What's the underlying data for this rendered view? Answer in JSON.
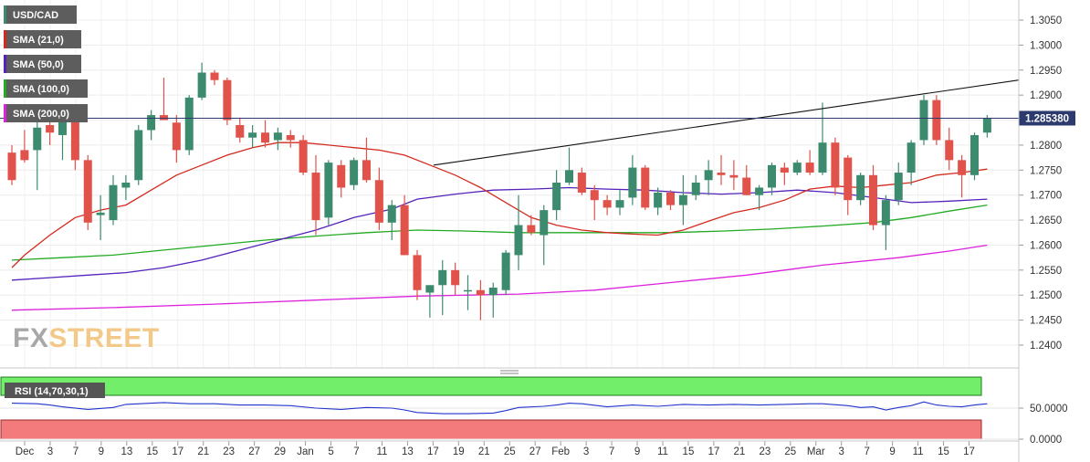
{
  "chart_data": {
    "type": "candlestick",
    "symbol": "USD/CAD",
    "last_price_label": "1.285380",
    "last_price": 1.28538,
    "colors": {
      "up": "#3d8b6e",
      "down": "#e0524a",
      "sma21": "#d42a1e",
      "sma50": "#5522bb",
      "sma100": "#22aa22",
      "sma200": "#dd22dd",
      "trendline": "#111111",
      "lastline": "#2c3a6e"
    },
    "y_axis": {
      "min": 1.235,
      "max": 1.308,
      "ticks": [
        "1.3050",
        "1.3000",
        "1.2950",
        "1.2900",
        "1.2850",
        "1.2800",
        "1.2750",
        "1.2700",
        "1.2650",
        "1.2600",
        "1.2550",
        "1.2500",
        "1.2450",
        "1.2400"
      ]
    },
    "x_axis_labels": [
      "Dec",
      "3",
      "7",
      "9",
      "13",
      "15",
      "17",
      "21",
      "23",
      "27",
      "29",
      "Jan",
      "5",
      "7",
      "11",
      "13",
      "17",
      "19",
      "21",
      "25",
      "27",
      "Feb",
      "3",
      "7",
      "9",
      "11",
      "15",
      "17",
      "21",
      "23",
      "25",
      "Mar",
      "3",
      "7",
      "9",
      "11",
      "15",
      "17"
    ],
    "legend": [
      "USD/CAD",
      "SMA (21,0)",
      "SMA (50,0)",
      "SMA (100,0)",
      "SMA (200,0)"
    ],
    "ohlc": [
      [
        1.2785,
        1.28,
        1.272,
        1.273
      ],
      [
        1.279,
        1.283,
        1.2765,
        1.277
      ],
      [
        1.279,
        1.285,
        1.271,
        1.2835
      ],
      [
        1.284,
        1.2855,
        1.28,
        1.2825
      ],
      [
        1.282,
        1.285,
        1.277,
        1.2855
      ],
      [
        1.285,
        1.287,
        1.275,
        1.277
      ],
      [
        1.277,
        1.278,
        1.263,
        1.2645
      ],
      [
        1.266,
        1.27,
        1.261,
        1.2665
      ],
      [
        1.265,
        1.274,
        1.264,
        1.272
      ],
      [
        1.2715,
        1.274,
        1.269,
        1.2725
      ],
      [
        1.273,
        1.284,
        1.272,
        1.283
      ],
      [
        1.283,
        1.287,
        1.281,
        1.286
      ],
      [
        1.286,
        1.2935,
        1.285,
        1.285
      ],
      [
        1.2845,
        1.286,
        1.2765,
        1.279
      ],
      [
        1.279,
        1.29,
        1.278,
        1.2895
      ],
      [
        1.2895,
        1.2965,
        1.289,
        1.2945
      ],
      [
        1.2945,
        1.295,
        1.292,
        1.293
      ],
      [
        1.293,
        1.2935,
        1.284,
        1.285
      ],
      [
        1.284,
        1.2855,
        1.2805,
        1.2815
      ],
      [
        1.2815,
        1.284,
        1.2795,
        1.2825
      ],
      [
        1.2825,
        1.285,
        1.2795,
        1.2805
      ],
      [
        1.281,
        1.2835,
        1.279,
        1.2825
      ],
      [
        1.282,
        1.283,
        1.2795,
        1.281
      ],
      [
        1.281,
        1.282,
        1.274,
        1.2745
      ],
      [
        1.2745,
        1.278,
        1.262,
        1.265
      ],
      [
        1.2655,
        1.277,
        1.264,
        1.2765
      ],
      [
        1.276,
        1.277,
        1.2695,
        1.2715
      ],
      [
        1.272,
        1.2775,
        1.271,
        1.277
      ],
      [
        1.277,
        1.2815,
        1.2725,
        1.273
      ],
      [
        1.273,
        1.2755,
        1.263,
        1.2645
      ],
      [
        1.2645,
        1.269,
        1.261,
        1.268
      ],
      [
        1.268,
        1.27,
        1.258,
        1.258
      ],
      [
        1.258,
        1.259,
        1.249,
        1.251
      ],
      [
        1.2505,
        1.252,
        1.2455,
        1.252
      ],
      [
        1.252,
        1.257,
        1.246,
        1.255
      ],
      [
        1.255,
        1.2565,
        1.25,
        1.252
      ],
      [
        1.251,
        1.254,
        1.247,
        1.251
      ],
      [
        1.251,
        1.253,
        1.245,
        1.25
      ],
      [
        1.25,
        1.2525,
        1.2455,
        1.2515
      ],
      [
        1.251,
        1.259,
        1.25,
        1.2585
      ],
      [
        1.258,
        1.27,
        1.255,
        1.264
      ],
      [
        1.264,
        1.266,
        1.262,
        1.2625
      ],
      [
        1.262,
        1.268,
        1.256,
        1.267
      ],
      [
        1.267,
        1.275,
        1.265,
        1.2725
      ],
      [
        1.2725,
        1.2795,
        1.272,
        1.275
      ],
      [
        1.2745,
        1.2755,
        1.27,
        1.2705
      ],
      [
        1.271,
        1.272,
        1.265,
        1.269
      ],
      [
        1.269,
        1.27,
        1.266,
        1.2675
      ],
      [
        1.2675,
        1.271,
        1.266,
        1.269
      ],
      [
        1.2695,
        1.278,
        1.268,
        1.2755
      ],
      [
        1.2755,
        1.276,
        1.267,
        1.2675
      ],
      [
        1.2675,
        1.2715,
        1.266,
        1.2705
      ],
      [
        1.2705,
        1.271,
        1.267,
        1.268
      ],
      [
        1.268,
        1.274,
        1.264,
        1.27
      ],
      [
        1.27,
        1.274,
        1.269,
        1.2725
      ],
      [
        1.273,
        1.277,
        1.27,
        1.275
      ],
      [
        1.2745,
        1.278,
        1.272,
        1.274
      ],
      [
        1.274,
        1.277,
        1.271,
        1.2735
      ],
      [
        1.2735,
        1.276,
        1.27,
        1.27
      ],
      [
        1.27,
        1.272,
        1.267,
        1.2715
      ],
      [
        1.2715,
        1.2765,
        1.27,
        1.276
      ],
      [
        1.2755,
        1.2765,
        1.272,
        1.2745
      ],
      [
        1.2745,
        1.277,
        1.274,
        1.2765
      ],
      [
        1.2765,
        1.279,
        1.274,
        1.2745
      ],
      [
        1.2745,
        1.2885,
        1.274,
        1.2805
      ],
      [
        1.2805,
        1.2815,
        1.27,
        1.2715
      ],
      [
        1.2775,
        1.278,
        1.266,
        1.269
      ],
      [
        1.269,
        1.2745,
        1.268,
        1.274
      ],
      [
        1.274,
        1.276,
        1.263,
        1.264
      ],
      [
        1.264,
        1.27,
        1.259,
        1.269
      ],
      [
        1.269,
        1.2765,
        1.268,
        1.2745
      ],
      [
        1.2745,
        1.281,
        1.272,
        1.2805
      ],
      [
        1.281,
        1.29,
        1.28,
        1.289
      ],
      [
        1.289,
        1.29,
        1.28,
        1.281
      ],
      [
        1.281,
        1.2835,
        1.275,
        1.277
      ],
      [
        1.277,
        1.278,
        1.2695,
        1.274
      ],
      [
        1.274,
        1.2825,
        1.273,
        1.282
      ],
      [
        1.2825,
        1.286,
        1.2815,
        1.28538
      ]
    ],
    "sma21": [
      [
        0,
        1.2555
      ],
      [
        1,
        1.258
      ],
      [
        3,
        1.262
      ],
      [
        5,
        1.2655
      ],
      [
        7,
        1.267
      ],
      [
        9,
        1.268
      ],
      [
        11,
        1.271
      ],
      [
        13,
        1.274
      ],
      [
        15,
        1.276
      ],
      [
        17,
        1.278
      ],
      [
        19,
        1.2795
      ],
      [
        21,
        1.2805
      ],
      [
        23,
        1.2805
      ],
      [
        25,
        1.28
      ],
      [
        27,
        1.2795
      ],
      [
        29,
        1.279
      ],
      [
        31,
        1.278
      ],
      [
        33,
        1.276
      ],
      [
        35,
        1.274
      ],
      [
        37,
        1.2715
      ],
      [
        39,
        1.2685
      ],
      [
        41,
        1.2655
      ],
      [
        43,
        1.264
      ],
      [
        45,
        1.263
      ],
      [
        47,
        1.2625
      ],
      [
        49,
        1.2622
      ],
      [
        51,
        1.262
      ],
      [
        53,
        1.263
      ],
      [
        55,
        1.2648
      ],
      [
        57,
        1.2665
      ],
      [
        59,
        1.2675
      ],
      [
        61,
        1.269
      ],
      [
        63,
        1.2712
      ],
      [
        65,
        1.2718
      ],
      [
        67,
        1.2715
      ],
      [
        69,
        1.272
      ],
      [
        71,
        1.2725
      ],
      [
        73,
        1.274
      ],
      [
        75,
        1.2745
      ],
      [
        77,
        1.2752
      ]
    ],
    "sma50": [
      [
        0,
        1.253
      ],
      [
        3,
        1.2535
      ],
      [
        6,
        1.254
      ],
      [
        9,
        1.2545
      ],
      [
        12,
        1.2555
      ],
      [
        15,
        1.257
      ],
      [
        18,
        1.259
      ],
      [
        21,
        1.261
      ],
      [
        24,
        1.263
      ],
      [
        27,
        1.2655
      ],
      [
        30,
        1.2672
      ],
      [
        32,
        1.2692
      ],
      [
        35,
        1.2702
      ],
      [
        38,
        1.271
      ],
      [
        41,
        1.2712
      ],
      [
        44,
        1.2715
      ],
      [
        47,
        1.2712
      ],
      [
        50,
        1.271
      ],
      [
        53,
        1.2705
      ],
      [
        56,
        1.2702
      ],
      [
        59,
        1.2705
      ],
      [
        62,
        1.271
      ],
      [
        65,
        1.2705
      ],
      [
        68,
        1.2695
      ],
      [
        71,
        1.2685
      ],
      [
        74,
        1.2688
      ],
      [
        77,
        1.2692
      ]
    ],
    "sma100": [
      [
        0,
        1.257
      ],
      [
        4,
        1.2575
      ],
      [
        8,
        1.258
      ],
      [
        12,
        1.259
      ],
      [
        16,
        1.26
      ],
      [
        20,
        1.261
      ],
      [
        24,
        1.2618
      ],
      [
        28,
        1.2625
      ],
      [
        32,
        1.263
      ],
      [
        36,
        1.2628
      ],
      [
        40,
        1.2625
      ],
      [
        44,
        1.2625
      ],
      [
        48,
        1.2625
      ],
      [
        52,
        1.2625
      ],
      [
        56,
        1.2628
      ],
      [
        60,
        1.2632
      ],
      [
        64,
        1.2638
      ],
      [
        68,
        1.2645
      ],
      [
        71,
        1.2655
      ],
      [
        74,
        1.2668
      ],
      [
        77,
        1.268
      ]
    ],
    "sma200": [
      [
        0,
        1.247
      ],
      [
        8,
        1.2475
      ],
      [
        16,
        1.2482
      ],
      [
        24,
        1.249
      ],
      [
        32,
        1.2498
      ],
      [
        40,
        1.2502
      ],
      [
        46,
        1.251
      ],
      [
        52,
        1.2525
      ],
      [
        58,
        1.254
      ],
      [
        64,
        1.256
      ],
      [
        70,
        1.2575
      ],
      [
        74,
        1.2588
      ],
      [
        77,
        1.26
      ]
    ],
    "trendline": [
      [
        33.3,
        1.276
      ],
      [
        78,
        1.293
      ]
    ],
    "rsi": {
      "label": "RSI (14,70,30,1)",
      "ticks": [
        "50.0000",
        "0.0000"
      ],
      "overbought": 70,
      "oversold": 30,
      "values": [
        [
          0,
          58
        ],
        [
          2,
          57
        ],
        [
          3,
          55
        ],
        [
          4,
          52
        ],
        [
          6,
          48
        ],
        [
          8,
          51
        ],
        [
          9,
          56
        ],
        [
          11,
          58
        ],
        [
          12,
          59
        ],
        [
          14,
          57
        ],
        [
          16,
          57
        ],
        [
          18,
          55
        ],
        [
          20,
          55
        ],
        [
          22,
          54
        ],
        [
          24,
          50
        ],
        [
          26,
          48
        ],
        [
          28,
          51
        ],
        [
          30,
          50
        ],
        [
          31,
          47
        ],
        [
          32,
          43
        ],
        [
          34,
          41
        ],
        [
          36,
          41
        ],
        [
          38,
          42
        ],
        [
          39,
          46
        ],
        [
          40,
          51
        ],
        [
          42,
          53
        ],
        [
          43,
          55
        ],
        [
          44,
          58
        ],
        [
          45,
          57
        ],
        [
          47,
          52
        ],
        [
          49,
          55
        ],
        [
          51,
          53
        ],
        [
          53,
          56
        ],
        [
          55,
          55
        ],
        [
          57,
          56
        ],
        [
          59,
          55
        ],
        [
          61,
          56
        ],
        [
          63,
          57
        ],
        [
          64,
          57
        ],
        [
          66,
          54
        ],
        [
          67,
          51
        ],
        [
          68,
          52
        ],
        [
          69,
          47
        ],
        [
          70,
          51
        ],
        [
          71,
          54
        ],
        [
          72,
          60
        ],
        [
          73,
          55
        ],
        [
          74,
          53
        ],
        [
          75,
          52
        ],
        [
          76,
          55
        ],
        [
          77,
          57
        ]
      ]
    }
  },
  "watermark": "FXSTREET"
}
